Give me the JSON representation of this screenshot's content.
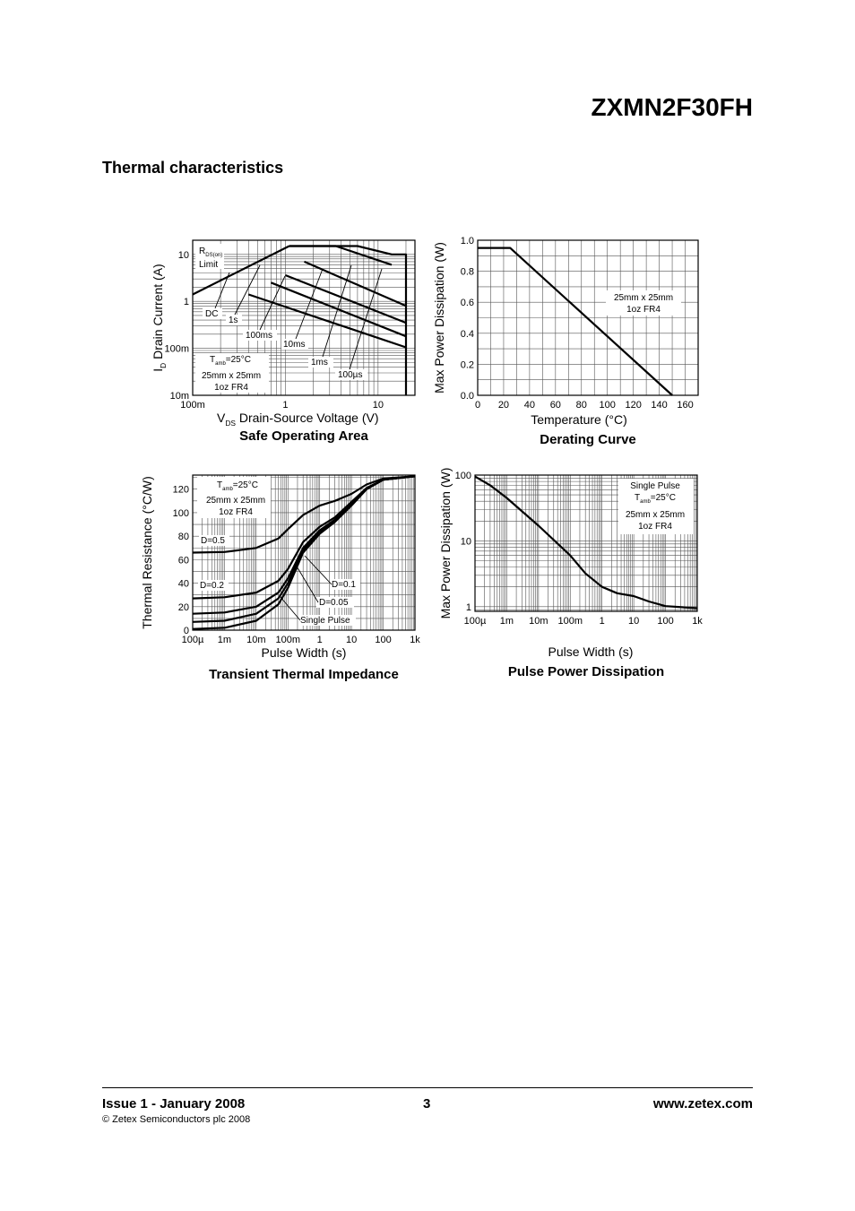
{
  "header": {
    "part_number": "ZXMN2F30FH"
  },
  "section_title": "Thermal characteristics",
  "chart_data": [
    {
      "id": "soa",
      "type": "line",
      "title": "Safe Operating Area",
      "xlabel": {
        "main": "V",
        "sub": "DS",
        "rest": "Drain-Source Voltage (V)"
      },
      "ylabel": {
        "main": "I",
        "sub": "D",
        "rest": "Drain Current (A)"
      },
      "x_scale": "log",
      "y_scale": "log",
      "xlim": [
        0.1,
        25
      ],
      "ylim": [
        0.01,
        20
      ],
      "x_ticks": [
        {
          "v": 0.1,
          "label": "100m"
        },
        {
          "v": 1,
          "label": "1"
        },
        {
          "v": 10,
          "label": "10"
        }
      ],
      "y_ticks": [
        {
          "v": 0.01,
          "label": "10m"
        },
        {
          "v": 0.1,
          "label": "100m"
        },
        {
          "v": 1,
          "label": "1"
        },
        {
          "v": 10,
          "label": "10"
        }
      ],
      "series": [
        {
          "name": "RDS(on) Limit",
          "points": [
            [
              0.1,
              1.4
            ],
            [
              1.1,
              15
            ]
          ]
        },
        {
          "name": "DC",
          "points": [
            [
              0.4,
              1.4
            ],
            [
              20,
              0.105
            ]
          ]
        },
        {
          "name": "1s",
          "points": [
            [
              0.7,
              2.5
            ],
            [
              20,
              0.18
            ]
          ]
        },
        {
          "name": "100ms",
          "points": [
            [
              1,
              3.6
            ],
            [
              20,
              0.35
            ]
          ]
        },
        {
          "name": "10ms",
          "points": [
            [
              1.6,
              7
            ],
            [
              20,
              0.8
            ]
          ]
        },
        {
          "name": "1ms",
          "points": [
            [
              1.1,
              15
            ],
            [
              3.5,
              15
            ],
            [
              14,
              6
            ]
          ]
        },
        {
          "name": "100µs",
          "points": [
            [
              1.1,
              15
            ],
            [
              6,
              15
            ],
            [
              14,
              10
            ],
            [
              20,
              10
            ],
            [
              20,
              0.01
            ]
          ]
        }
      ],
      "annotations": {
        "rds_main": "R",
        "rds_sub": "DS(on)",
        "rds_limit": "Limit",
        "dc": "DC",
        "s1": "1s",
        "ms100": "100ms",
        "ms10": "10ms",
        "ms1": "1ms",
        "us100": "100µs",
        "tamb_main": "T",
        "tamb_sub": "amb",
        "tamb_val": "=25°C",
        "board": "25mm x 25mm",
        "copper": "1oz FR4"
      }
    },
    {
      "id": "derating",
      "type": "line",
      "title": "Derating Curve",
      "xlabel": "Temperature (°C)",
      "ylabel": "Max Power Dissipation (W)",
      "xlim": [
        0,
        170
      ],
      "ylim": [
        0,
        1.0
      ],
      "x_ticks": [
        {
          "v": 0,
          "label": "0"
        },
        {
          "v": 20,
          "label": "20"
        },
        {
          "v": 40,
          "label": "40"
        },
        {
          "v": 60,
          "label": "60"
        },
        {
          "v": 80,
          "label": "80"
        },
        {
          "v": 100,
          "label": "100"
        },
        {
          "v": 120,
          "label": "120"
        },
        {
          "v": 140,
          "label": "140"
        },
        {
          "v": 160,
          "label": "160"
        }
      ],
      "y_ticks": [
        {
          "v": 0,
          "label": "0.0"
        },
        {
          "v": 0.2,
          "label": "0.2"
        },
        {
          "v": 0.4,
          "label": "0.4"
        },
        {
          "v": 0.6,
          "label": "0.6"
        },
        {
          "v": 0.8,
          "label": "0.8"
        },
        {
          "v": 1.0,
          "label": "1.0"
        }
      ],
      "series": [
        {
          "name": "Derating",
          "points": [
            [
              0,
              0.95
            ],
            [
              25,
              0.95
            ],
            [
              150,
              0
            ]
          ]
        }
      ],
      "annotations": {
        "board": "25mm x 25mm",
        "copper": "1oz FR4"
      }
    },
    {
      "id": "transient",
      "type": "line",
      "title": "Transient Thermal Impedance",
      "xlabel": "Pulse Width (s)",
      "ylabel": "Thermal Resistance (°C/W)",
      "x_scale": "log",
      "xlim": [
        0.0001,
        1000
      ],
      "ylim": [
        0,
        132
      ],
      "x_ticks": [
        {
          "v": 0.0001,
          "label": "100µ"
        },
        {
          "v": 0.001,
          "label": "1m"
        },
        {
          "v": 0.01,
          "label": "10m"
        },
        {
          "v": 0.1,
          "label": "100m"
        },
        {
          "v": 1,
          "label": "1"
        },
        {
          "v": 10,
          "label": "10"
        },
        {
          "v": 100,
          "label": "100"
        },
        {
          "v": 1000,
          "label": "1k"
        }
      ],
      "y_ticks": [
        {
          "v": 0,
          "label": "0"
        },
        {
          "v": 20,
          "label": "20"
        },
        {
          "v": 40,
          "label": "40"
        },
        {
          "v": 60,
          "label": "60"
        },
        {
          "v": 80,
          "label": "80"
        },
        {
          "v": 100,
          "label": "100"
        },
        {
          "v": 120,
          "label": "120"
        }
      ],
      "series": [
        {
          "name": "D=0.5",
          "points": [
            [
              0.0001,
              66
            ],
            [
              0.001,
              66.5
            ],
            [
              0.01,
              70
            ],
            [
              0.05,
              78
            ],
            [
              0.1,
              86
            ],
            [
              0.3,
              98
            ],
            [
              1,
              106
            ],
            [
              3,
              110
            ],
            [
              10,
              116
            ],
            [
              30,
              124
            ],
            [
              100,
              129
            ],
            [
              1000,
              131
            ]
          ]
        },
        {
          "name": "D=0.2",
          "points": [
            [
              0.0001,
              27
            ],
            [
              0.001,
              28
            ],
            [
              0.01,
              32
            ],
            [
              0.05,
              42
            ],
            [
              0.1,
              52
            ],
            [
              0.3,
              75
            ],
            [
              1,
              88
            ],
            [
              3,
              96
            ],
            [
              10,
              109
            ],
            [
              30,
              121
            ],
            [
              100,
              128
            ],
            [
              1000,
              131
            ]
          ]
        },
        {
          "name": "D=0.1",
          "points": [
            [
              0.0001,
              14
            ],
            [
              0.001,
              15
            ],
            [
              0.01,
              20
            ],
            [
              0.05,
              32
            ],
            [
              0.1,
              44
            ],
            [
              0.3,
              70
            ],
            [
              1,
              85
            ],
            [
              3,
              94
            ],
            [
              10,
              107
            ],
            [
              30,
              120
            ],
            [
              100,
              128
            ],
            [
              1000,
              131
            ]
          ]
        },
        {
          "name": "D=0.05",
          "points": [
            [
              0.0001,
              7
            ],
            [
              0.001,
              8
            ],
            [
              0.01,
              14
            ],
            [
              0.05,
              27
            ],
            [
              0.1,
              40
            ],
            [
              0.3,
              68
            ],
            [
              1,
              84
            ],
            [
              3,
              93
            ],
            [
              10,
              107
            ],
            [
              30,
              120
            ],
            [
              100,
              128
            ],
            [
              1000,
              131
            ]
          ]
        },
        {
          "name": "Single Pulse",
          "points": [
            [
              0.0001,
              1
            ],
            [
              0.001,
              2
            ],
            [
              0.01,
              8
            ],
            [
              0.05,
              22
            ],
            [
              0.1,
              36
            ],
            [
              0.3,
              66
            ],
            [
              1,
              82
            ],
            [
              3,
              92
            ],
            [
              10,
              106
            ],
            [
              30,
              120
            ],
            [
              100,
              128
            ],
            [
              1000,
              131
            ]
          ]
        }
      ],
      "annotations": {
        "d05": "D=0.5",
        "d02": "D=0.2",
        "d01": "D=0.1",
        "d005": "D=0.05",
        "single": "Single Pulse",
        "tamb_main": "T",
        "tamb_sub": "amb",
        "tamb_val": "=25°C",
        "board": "25mm x 25mm",
        "copper": "1oz FR4"
      }
    },
    {
      "id": "pulse",
      "type": "line",
      "title": "Pulse Power Dissipation",
      "xlabel": "Pulse Width (s)",
      "ylabel": "Max Power Dissipation (W)",
      "x_scale": "log",
      "y_scale": "log",
      "xlim": [
        0.0001,
        1000
      ],
      "ylim": [
        0.85,
        100
      ],
      "x_ticks": [
        {
          "v": 0.0001,
          "label": "100µ"
        },
        {
          "v": 0.001,
          "label": "1m"
        },
        {
          "v": 0.01,
          "label": "10m"
        },
        {
          "v": 0.1,
          "label": "100m"
        },
        {
          "v": 1,
          "label": "1"
        },
        {
          "v": 10,
          "label": "10"
        },
        {
          "v": 100,
          "label": "100"
        },
        {
          "v": 1000,
          "label": "1k"
        }
      ],
      "y_ticks": [
        {
          "v": 1,
          "label": "1"
        },
        {
          "v": 10,
          "label": "10"
        },
        {
          "v": 100,
          "label": "100"
        }
      ],
      "series": [
        {
          "name": "Single Pulse",
          "points": [
            [
              0.0001,
              95
            ],
            [
              0.0003,
              70
            ],
            [
              0.001,
              45
            ],
            [
              0.01,
              17
            ],
            [
              0.1,
              6
            ],
            [
              0.3,
              3.2
            ],
            [
              1,
              2
            ],
            [
              3,
              1.6
            ],
            [
              10,
              1.45
            ],
            [
              30,
              1.2
            ],
            [
              100,
              1.02
            ],
            [
              1000,
              0.95
            ]
          ]
        }
      ],
      "annotations": {
        "single": "Single Pulse",
        "tamb_main": "T",
        "tamb_sub": "amb",
        "tamb_val": "=25°C",
        "board": "25mm x 25mm",
        "copper": "1oz FR4"
      }
    }
  ],
  "footer": {
    "issue": "Issue 1 - January 2008",
    "copyright": "© Zetex Semiconductors plc 2008",
    "page": "3",
    "url": "www.zetex.com"
  }
}
